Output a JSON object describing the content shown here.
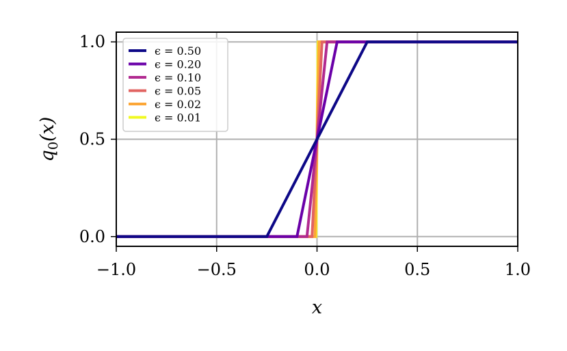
{
  "chart_data": {
    "type": "line",
    "xlabel": "x",
    "ylabel": "q0(x)",
    "xlim": [
      -1.0,
      1.0
    ],
    "ylim": [
      -0.05,
      1.05
    ],
    "xticks": [
      -1.0,
      -0.5,
      0.0,
      0.5,
      1.0
    ],
    "xtick_labels": [
      "−1.0",
      "−0.5",
      "0.0",
      "0.5",
      "1.0"
    ],
    "yticks": [
      0.0,
      0.5,
      1.0
    ],
    "ytick_labels": [
      "0.0",
      "0.5",
      "1.0"
    ],
    "grid": true,
    "legend_position": "top-left",
    "series": [
      {
        "name": "ϵ = 0.50",
        "color": "#0d0887",
        "x": [
          -1.0,
          -0.25,
          0.25,
          1.0
        ],
        "y": [
          0.0,
          0.0,
          1.0,
          1.0
        ]
      },
      {
        "name": "ϵ = 0.20",
        "color": "#6a00a8",
        "x": [
          -1.0,
          -0.1,
          0.1,
          1.0
        ],
        "y": [
          0.0,
          0.0,
          1.0,
          1.0
        ]
      },
      {
        "name": "ϵ = 0.10",
        "color": "#b12a90",
        "x": [
          -1.0,
          -0.05,
          0.05,
          1.0
        ],
        "y": [
          0.0,
          0.0,
          1.0,
          1.0
        ]
      },
      {
        "name": "ϵ = 0.05",
        "color": "#e16462",
        "x": [
          -1.0,
          -0.025,
          0.025,
          1.0
        ],
        "y": [
          0.0,
          0.0,
          1.0,
          1.0
        ]
      },
      {
        "name": "ϵ = 0.02",
        "color": "#fca636",
        "x": [
          -1.0,
          -0.01,
          0.01,
          1.0
        ],
        "y": [
          0.0,
          0.0,
          1.0,
          1.0
        ]
      },
      {
        "name": "ϵ = 0.01",
        "color": "#f0f921",
        "x": [
          -1.0,
          -0.005,
          0.005,
          1.0
        ],
        "y": [
          0.0,
          0.0,
          1.0,
          1.0
        ]
      }
    ]
  }
}
